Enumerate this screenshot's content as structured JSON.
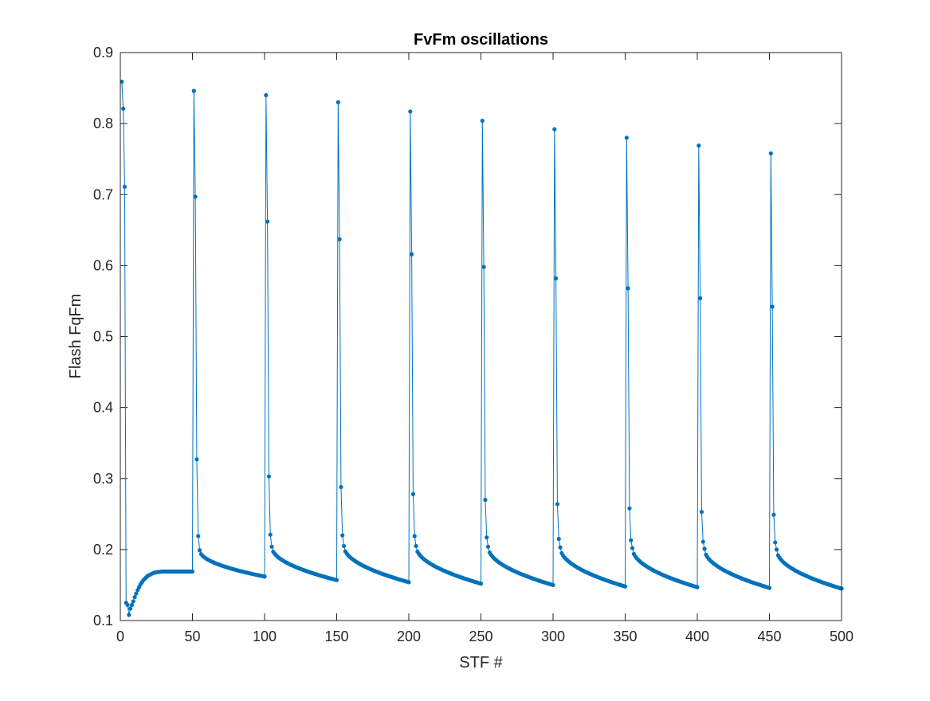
{
  "chart_data": {
    "type": "line",
    "title": "FvFm oscillations",
    "xlabel": "STF #",
    "ylabel": "Flash FqFm",
    "xlim": [
      0,
      500
    ],
    "ylim": [
      0.1,
      0.9
    ],
    "xticks": [
      "0",
      "50",
      "100",
      "150",
      "200",
      "250",
      "300",
      "350",
      "400",
      "450",
      "500"
    ],
    "yticks": [
      "0.1",
      "0.2",
      "0.3",
      "0.4",
      "0.5",
      "0.6",
      "0.7",
      "0.8",
      "0.9"
    ],
    "grid": false,
    "marker": "dot",
    "color": "#0072BD",
    "series": [
      {
        "segments": [
          {
            "start": 1,
            "values": [
              0.859,
              0.821,
              0.711
            ]
          },
          {
            "start": 4,
            "values": [
              0.125,
              0.122,
              0.108,
              0.117,
              0.122,
              0.127,
              0.133,
              0.138,
              0.143,
              0.147,
              0.151,
              0.154,
              0.157,
              0.159,
              0.161,
              0.163,
              0.164,
              0.165,
              0.166,
              0.167,
              0.1675,
              0.168,
              0.1683,
              0.1686,
              0.1688,
              0.169,
              0.169,
              0.169,
              0.169,
              0.169,
              0.169,
              0.169,
              0.169,
              0.169,
              0.169,
              0.169,
              0.169,
              0.169,
              0.169,
              0.169,
              0.169,
              0.169,
              0.169,
              0.169,
              0.169,
              0.169,
              0.169
            ]
          },
          {
            "start": 51,
            "values": [
              0.846,
              0.697,
              0.327,
              0.219,
              0.199
            ]
          },
          {
            "start": 101,
            "values": [
              0.84,
              0.662,
              0.303,
              0.221,
              0.204
            ]
          },
          {
            "start": 151,
            "values": [
              0.83,
              0.637,
              0.288,
              0.22,
              0.205
            ]
          },
          {
            "start": 201,
            "values": [
              0.817,
              0.616,
              0.278,
              0.219,
              0.205
            ]
          },
          {
            "start": 251,
            "values": [
              0.804,
              0.598,
              0.27,
              0.217,
              0.204
            ]
          },
          {
            "start": 301,
            "values": [
              0.792,
              0.582,
              0.264,
              0.215,
              0.203
            ]
          },
          {
            "start": 351,
            "values": [
              0.78,
              0.568,
              0.258,
              0.213,
              0.202
            ]
          },
          {
            "start": 401,
            "values": [
              0.769,
              0.554,
              0.253,
              0.211,
              0.201
            ]
          },
          {
            "start": 451,
            "values": [
              0.758,
              0.542,
              0.249,
              0.21,
              0.2
            ]
          }
        ],
        "decays": [
          {
            "from": 55,
            "to": 100,
            "y_start": 0.199,
            "y_end": 0.162
          },
          {
            "from": 105,
            "to": 150,
            "y_start": 0.204,
            "y_end": 0.157
          },
          {
            "from": 155,
            "to": 200,
            "y_start": 0.205,
            "y_end": 0.154
          },
          {
            "from": 205,
            "to": 250,
            "y_start": 0.205,
            "y_end": 0.152
          },
          {
            "from": 255,
            "to": 300,
            "y_start": 0.204,
            "y_end": 0.15
          },
          {
            "from": 305,
            "to": 350,
            "y_start": 0.203,
            "y_end": 0.148
          },
          {
            "from": 355,
            "to": 400,
            "y_start": 0.202,
            "y_end": 0.147
          },
          {
            "from": 405,
            "to": 450,
            "y_start": 0.201,
            "y_end": 0.146
          },
          {
            "from": 455,
            "to": 500,
            "y_start": 0.2,
            "y_end": 0.145
          }
        ]
      }
    ]
  }
}
